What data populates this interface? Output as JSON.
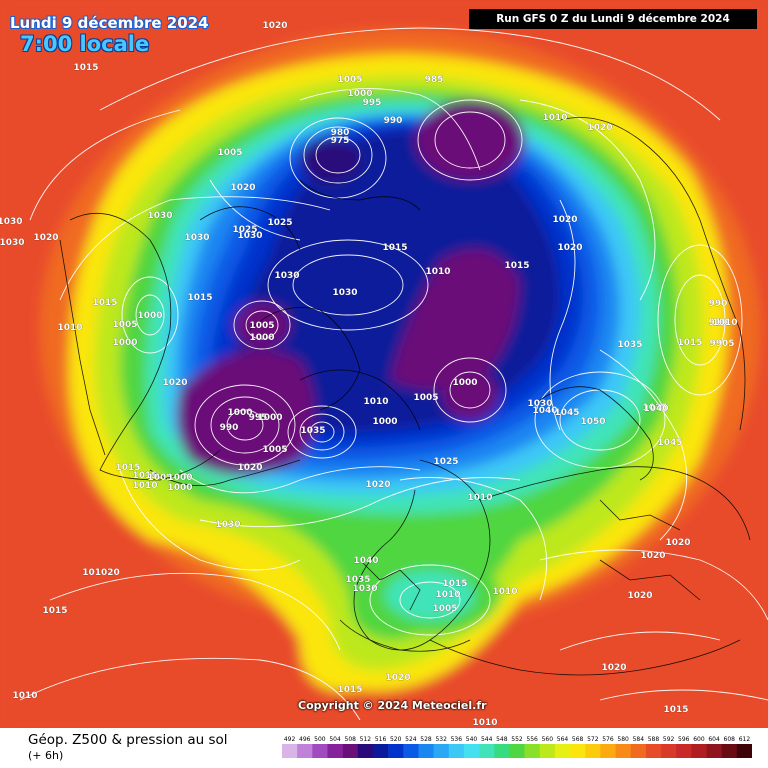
{
  "header": {
    "date": "Lundi 9 décembre 2024",
    "time": "7:00 locale",
    "run": "Run GFS 0 Z du Lundi 9 décembre 2024"
  },
  "copyright": "Copyright © 2024 Meteociel.fr",
  "footer": {
    "title": "Géop. Z500 & pression au sol",
    "subtitle": "(+ 6h)"
  },
  "scale": {
    "values": [
      "492",
      "496",
      "500",
      "504",
      "508",
      "512",
      "516",
      "520",
      "524",
      "528",
      "532",
      "536",
      "540",
      "544",
      "548",
      "552",
      "556",
      "560",
      "564",
      "568",
      "572",
      "576",
      "580",
      "584",
      "588",
      "592",
      "596",
      "600",
      "604",
      "608",
      "612"
    ],
    "colors": [
      "#d9b4e6",
      "#c081d8",
      "#a04cc0",
      "#86239c",
      "#6a1078",
      "#2a0a7a",
      "#0a1a9a",
      "#0033cc",
      "#0a5ae6",
      "#1a86f2",
      "#2aa8f6",
      "#3cc8f6",
      "#44e0f0",
      "#40e4b8",
      "#38dc80",
      "#50d640",
      "#88e028",
      "#bde81a",
      "#e6f014",
      "#fae60c",
      "#fccc0c",
      "#fcaa10",
      "#f88a18",
      "#f06a20",
      "#e84b2a",
      "#d83a2a",
      "#c82a28",
      "#b01e22",
      "#90141c",
      "#6a0a12",
      "#3c0408"
    ]
  },
  "pressure_labels": [
    "1020",
    "1015",
    "1005",
    "1000",
    "995",
    "980",
    "975",
    "985",
    "990",
    "1010",
    "1020",
    "1005",
    "1020",
    "1030",
    "1030",
    "1030",
    "1025",
    "1025",
    "1015",
    "1015",
    "1020",
    "1020",
    "1010",
    "1030",
    "1030",
    "1015",
    "1010",
    "1005",
    "1000",
    "1000",
    "1020",
    "1000",
    "990",
    "1005",
    "1000",
    "995",
    "1000",
    "1035",
    "1010",
    "1005",
    "1000",
    "1000",
    "1010",
    "1005",
    "1015",
    "1015",
    "1010",
    "1005",
    "1000",
    "1000",
    "1025",
    "1020",
    "1030",
    "990",
    "910",
    "1010",
    "9905",
    "1015",
    "1035",
    "1030",
    "1040",
    "1045",
    "1050",
    "1045",
    "1035",
    "1040",
    "1040",
    "1035",
    "1030",
    "1020",
    "1015",
    "1010",
    "1005",
    "1010",
    "1020",
    "1020",
    "1020",
    "1015",
    "1015",
    "1020",
    "1010",
    "101020",
    "1015",
    "1010",
    "1020",
    "1030",
    "1030",
    "1015",
    "1020"
  ]
}
